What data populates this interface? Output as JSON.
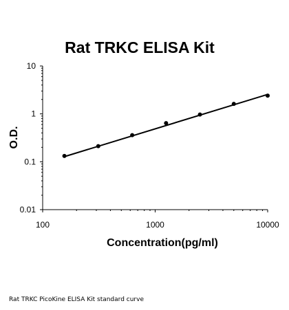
{
  "chart_data": {
    "type": "scatter",
    "title": "Rat TRKC ELISA Kit",
    "xlabel": "Concentration(pg/ml)",
    "ylabel": "O.D.",
    "xscale": "log",
    "yscale": "log",
    "xlim": [
      100,
      10000
    ],
    "ylim": [
      0.01,
      10
    ],
    "xticks": [
      100,
      1000,
      10000
    ],
    "xtick_labels": [
      "100",
      "1000",
      "10000"
    ],
    "yticks": [
      0.01,
      0.1,
      1,
      10
    ],
    "ytick_labels": [
      "0.01",
      "0.1",
      "1",
      "10"
    ],
    "grid": false,
    "legend": "none",
    "series": [
      {
        "x": [
          156,
          312,
          625,
          1250,
          2500,
          5000,
          10000
        ],
        "y": [
          0.132,
          0.212,
          0.36,
          0.64,
          0.97,
          1.62,
          2.4
        ],
        "marker_color": "#000000",
        "trendline": {
          "x": [
            156,
            10000
          ],
          "y": [
            0.128,
            2.55
          ],
          "color": "#000000"
        }
      }
    ]
  },
  "caption": "Rat TRKC PicoKine ELISA Kit standard curve"
}
